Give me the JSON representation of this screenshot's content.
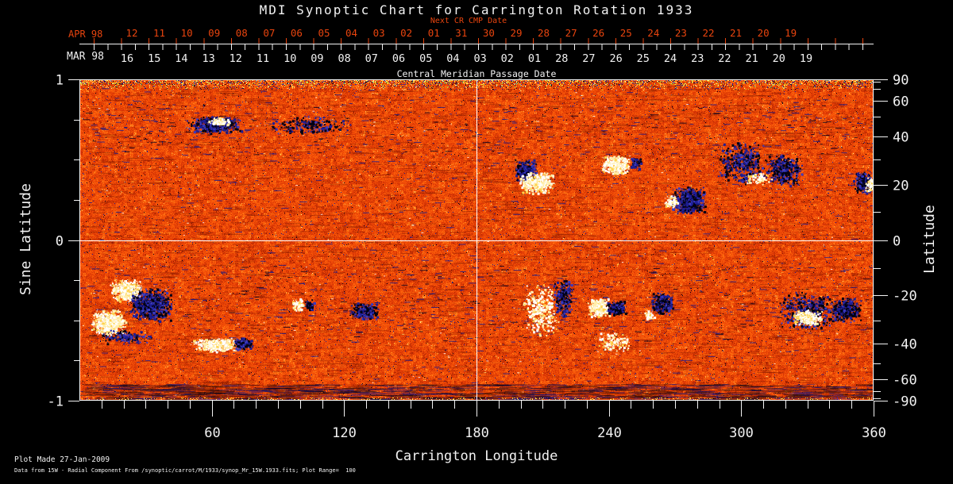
{
  "title": "MDI Synoptic Chart for Carrington Rotation 1933",
  "top_axis": {
    "next_cr_label": "Next CR CMP Date",
    "red_color": "#e8440e",
    "red_month_label": "APR 98",
    "red_days": [
      "12",
      "11",
      "10",
      "09",
      "08",
      "07",
      "06",
      "05",
      "04",
      "03",
      "02",
      "01",
      "31",
      "30",
      "29",
      "28",
      "27",
      "26",
      "25",
      "24",
      "23",
      "22",
      "21",
      "20",
      "19"
    ],
    "white_month_label": "MAR 98",
    "white_days": [
      "16",
      "15",
      "14",
      "13",
      "12",
      "11",
      "10",
      "09",
      "08",
      "07",
      "06",
      "05",
      "04",
      "03",
      "02",
      "01",
      "28",
      "27",
      "26",
      "25",
      "24",
      "23",
      "22",
      "21",
      "20",
      "19"
    ],
    "axis_title": "Central Meridian Passage Date"
  },
  "left_axis": {
    "label": "Sine Latitude",
    "ticks": [
      {
        "v": 1,
        "label": "1"
      },
      {
        "v": 0.75
      },
      {
        "v": 0.5
      },
      {
        "v": 0.25
      },
      {
        "v": 0,
        "label": "0"
      },
      {
        "v": -0.25
      },
      {
        "v": -0.5
      },
      {
        "v": -0.75
      },
      {
        "v": -1,
        "label": "-1"
      }
    ]
  },
  "right_axis": {
    "label": "Latitude",
    "tick_degrees": [
      90,
      80,
      70,
      60,
      50,
      40,
      30,
      20,
      10,
      0,
      -10,
      -20,
      -30,
      -40,
      -50,
      -60,
      -70,
      -80,
      -90
    ],
    "labeled_degrees": {
      "90": "90",
      "60": "60",
      "40": "40",
      "20": "20",
      "0": "0",
      "-20": "-20",
      "-40": "-40",
      "-60": "-60",
      "-90": "-90"
    }
  },
  "bottom_axis": {
    "label": "Carrington Longitude",
    "major_ticks": [
      60,
      120,
      180,
      240,
      300,
      360
    ],
    "minor_step_deg": 10
  },
  "footer": {
    "line1": "Plot Made 27-Jan-2009",
    "line2": "Data from 15W - Radial Component From /synoptic/carrot/M/1933/synop_Mr_15W.1933.fits; Plot Range=  100"
  },
  "chart_data": {
    "type": "heatmap",
    "title": "MDI Synoptic Chart for Carrington Rotation 1933",
    "xlabel": "Carrington Longitude",
    "ylabel_left": "Sine Latitude",
    "ylabel_right": "Latitude",
    "x_range_deg": [
      0,
      360
    ],
    "y_range_sine_latitude": [
      -1,
      1
    ],
    "plot_range_gauss": 100,
    "grid": {
      "lon_lines_deg": [
        180
      ],
      "sine_lat_lines": [
        0
      ]
    },
    "colormap_note": "negative field = blue/black, quiet sun = red/orange noise, positive field = yellow/white",
    "palette": [
      {
        "v": 0.05,
        "c": "#8f1c00"
      },
      {
        "v": 0.16,
        "c": "#b52a02"
      },
      {
        "v": 0.42,
        "c": "#d93705"
      },
      {
        "v": 0.7,
        "c": "#ef4b07"
      },
      {
        "v": 0.87,
        "c": "#fb5e0b"
      },
      {
        "v": 0.955,
        "c": "#ff7d18"
      },
      {
        "v": 0.99,
        "c": "#ffb347"
      },
      {
        "v": 2.0,
        "c": "#ffe98f"
      }
    ],
    "speck_colors": {
      "navy": "#1d1d94",
      "black": "#00001a",
      "pale": "#ffd778"
    },
    "positive_colors": [
      "#ffffff",
      "#ffeeaa",
      "#ffd34d"
    ],
    "negative_colors": [
      "#020214",
      "#1e1e96",
      "#3a3ac0"
    ],
    "region_fields": [
      "lon_deg",
      "sine_lat",
      "width_deg",
      "height_sine_lat",
      "polarity",
      "density"
    ],
    "active_regions": [
      [
        61,
        0.72,
        25,
        0.11,
        -1,
        0.5
      ],
      [
        63,
        0.74,
        11,
        0.05,
        1,
        0.6
      ],
      [
        103,
        0.72,
        40,
        0.12,
        -1,
        0.12
      ],
      [
        202,
        0.43,
        11,
        0.15,
        -1,
        0.5
      ],
      [
        207,
        0.36,
        16,
        0.14,
        1,
        0.5
      ],
      [
        243,
        0.47,
        14,
        0.12,
        1,
        0.6
      ],
      [
        252,
        0.48,
        6,
        0.08,
        -1,
        0.4
      ],
      [
        276,
        0.25,
        16,
        0.17,
        -1,
        0.6
      ],
      [
        268,
        0.24,
        6,
        0.08,
        1,
        0.4
      ],
      [
        300,
        0.48,
        23,
        0.27,
        -1,
        0.18
      ],
      [
        319,
        0.44,
        17,
        0.21,
        -1,
        0.3
      ],
      [
        308,
        0.38,
        13,
        0.08,
        1,
        0.25
      ],
      [
        355,
        0.36,
        9,
        0.15,
        -1,
        0.5
      ],
      [
        358,
        0.35,
        4,
        0.09,
        1,
        0.5
      ],
      [
        21,
        -0.31,
        15,
        0.14,
        1,
        0.55
      ],
      [
        32,
        -0.4,
        20,
        0.21,
        -1,
        0.5
      ],
      [
        13,
        -0.51,
        16,
        0.17,
        1,
        0.6
      ],
      [
        21,
        -0.6,
        23,
        0.09,
        -1,
        0.2
      ],
      [
        61,
        -0.65,
        22,
        0.09,
        1,
        0.5
      ],
      [
        74,
        -0.64,
        9,
        0.08,
        -1,
        0.5
      ],
      [
        99,
        -0.4,
        6,
        0.08,
        1,
        0.5
      ],
      [
        104,
        -0.4,
        5,
        0.07,
        -1,
        0.45
      ],
      [
        129,
        -0.44,
        14,
        0.11,
        -1,
        0.4
      ],
      [
        209,
        -0.43,
        17,
        0.34,
        1,
        0.15
      ],
      [
        219,
        -0.36,
        9,
        0.25,
        -1,
        0.35
      ],
      [
        235,
        -0.42,
        10,
        0.12,
        1,
        0.8
      ],
      [
        243,
        -0.42,
        9,
        0.1,
        -1,
        0.7
      ],
      [
        264,
        -0.39,
        11,
        0.15,
        -1,
        0.45
      ],
      [
        258,
        -0.46,
        5,
        0.07,
        1,
        0.4
      ],
      [
        242,
        -0.63,
        15,
        0.12,
        1,
        0.2
      ],
      [
        330,
        -0.44,
        27,
        0.24,
        -1,
        0.2
      ],
      [
        330,
        -0.48,
        14,
        0.1,
        1,
        0.5
      ],
      [
        347,
        -0.43,
        15,
        0.16,
        -1,
        0.4
      ]
    ]
  }
}
